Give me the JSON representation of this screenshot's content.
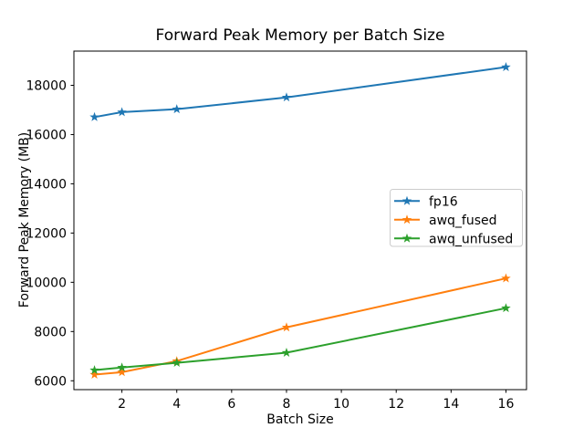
{
  "figure": {
    "background": "#ffffff",
    "frame_color": "#000000"
  },
  "chart_data": {
    "type": "line",
    "title": "Forward Peak Memory per Batch Size",
    "xlabel": "Batch Size",
    "ylabel": "Forward Peak Memory (MB)",
    "x": [
      1,
      2,
      4,
      8,
      16
    ],
    "series": [
      {
        "name": "fp16",
        "color": "#1f77b4",
        "marker": "star",
        "values": [
          16710,
          16910,
          17030,
          17510,
          18740
        ]
      },
      {
        "name": "awq_fused",
        "color": "#ff7f0e",
        "marker": "star",
        "values": [
          6250,
          6350,
          6800,
          8170,
          10160
        ]
      },
      {
        "name": "awq_unfused",
        "color": "#2ca02c",
        "marker": "star",
        "values": [
          6430,
          6540,
          6730,
          7140,
          8950
        ]
      }
    ],
    "xticks": [
      2,
      4,
      6,
      8,
      10,
      12,
      14,
      16
    ],
    "yticks": [
      6000,
      8000,
      10000,
      12000,
      14000,
      16000,
      18000
    ],
    "xlim": [
      0.25,
      16.75
    ],
    "ylim": [
      5640,
      19390
    ],
    "grid": false,
    "legend": {
      "position": "center right",
      "entries": [
        "fp16",
        "awq_fused",
        "awq_unfused"
      ]
    }
  }
}
